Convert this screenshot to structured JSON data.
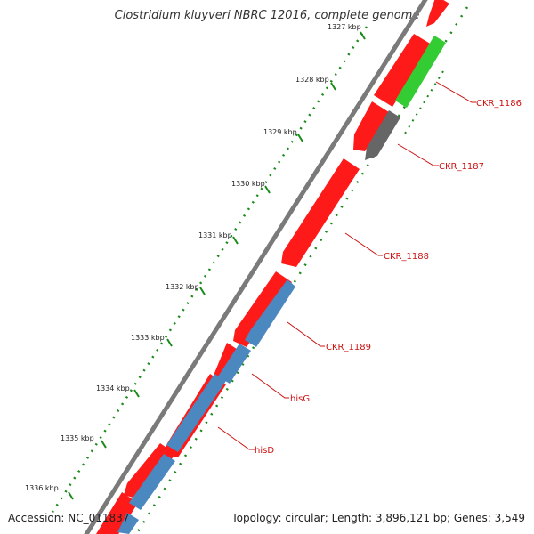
{
  "title": "Clostridium kluyveri NBRC 12016, complete genome",
  "footer": {
    "accession": "Accession: NC_011837",
    "stats": "Topology: circular; Length: 3,896,121 bp; Genes: 3,549"
  },
  "colors": {
    "backbone": "#7a7a7a",
    "ticks": "#1a8a1a",
    "cds_red": "#ff1a1a",
    "cds_green": "#33cc33",
    "cds_gray": "#666666",
    "cds_blue": "#4a88bf",
    "label": "#cc1111"
  },
  "ticks": [
    {
      "label": "1327 kbp"
    },
    {
      "label": "1328 kbp"
    },
    {
      "label": "1329 kbp"
    },
    {
      "label": "1330 kbp"
    },
    {
      "label": "1331 kbp"
    },
    {
      "label": "1332 kbp"
    },
    {
      "label": "1333 kbp"
    },
    {
      "label": "1334 kbp"
    },
    {
      "label": "1335 kbp"
    },
    {
      "label": "1336 kbp"
    }
  ],
  "gene_labels": [
    "CKR_1186",
    "CKR_1187",
    "CKR_1188",
    "CKR_1189",
    "hisG",
    "hisD"
  ]
}
